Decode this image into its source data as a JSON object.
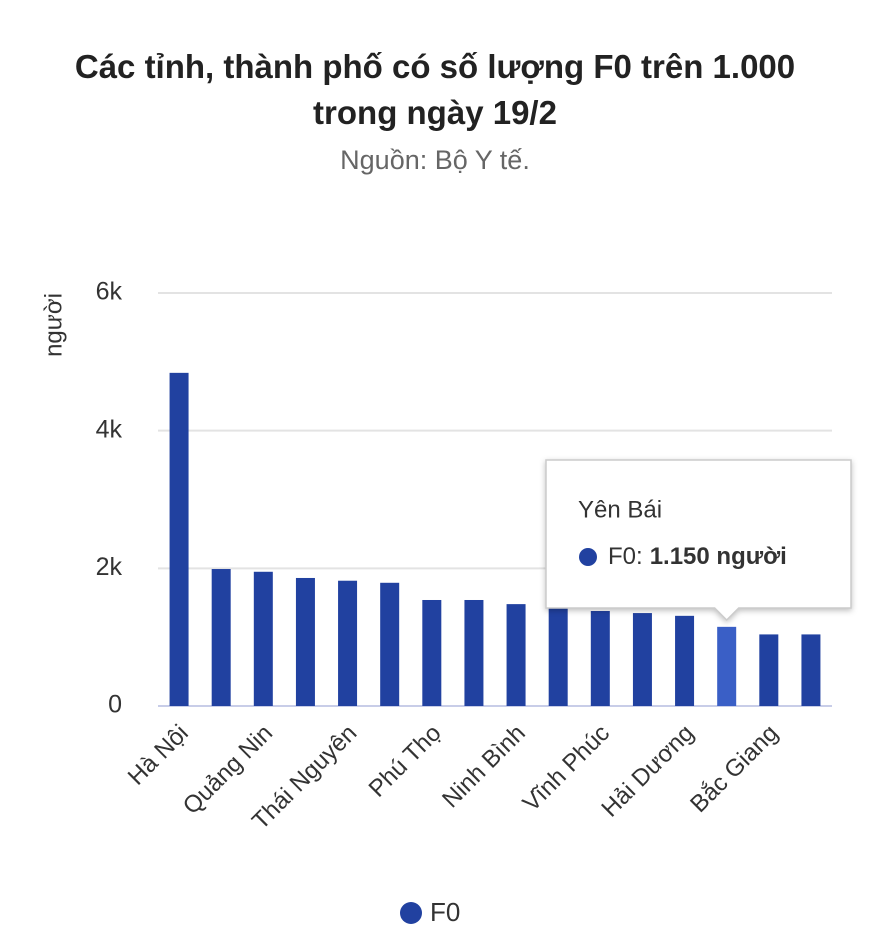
{
  "chart_data": {
    "type": "bar",
    "title": "Các tỉnh, thành phố có số lượng F0 trên 1.000 trong ngày 19/2",
    "subtitle": "Nguồn: Bộ Y tế.",
    "y_label": "người",
    "categories": [
      "Hà Nội",
      null,
      "Quảng Nin",
      null,
      "Thái Nguyên",
      null,
      "Phú Thọ",
      null,
      "Ninh Bình",
      null,
      "Vĩnh Phúc",
      null,
      "Hải Dương",
      null,
      "Bắc Giang",
      null
    ],
    "series": [
      {
        "name": "F0",
        "color": "#2141a0",
        "highlight_color": "#3a5fc6",
        "values": [
          4840,
          1990,
          1950,
          1860,
          1820,
          1790,
          1540,
          1540,
          1480,
          1420,
          1380,
          1350,
          1310,
          1150,
          1040,
          1040
        ]
      }
    ],
    "ylim": [
      0,
      6000
    ],
    "yticks": [
      0,
      {
        "value": 2000,
        "label": "2k"
      },
      {
        "value": 4000,
        "label": "4k"
      },
      {
        "value": 6000,
        "label": "6k"
      }
    ],
    "grid": true,
    "legend": "bottom",
    "tooltip": {
      "index": 13,
      "title": "Yên Bái",
      "label": "F0:",
      "value_label": "1.150 người"
    }
  }
}
